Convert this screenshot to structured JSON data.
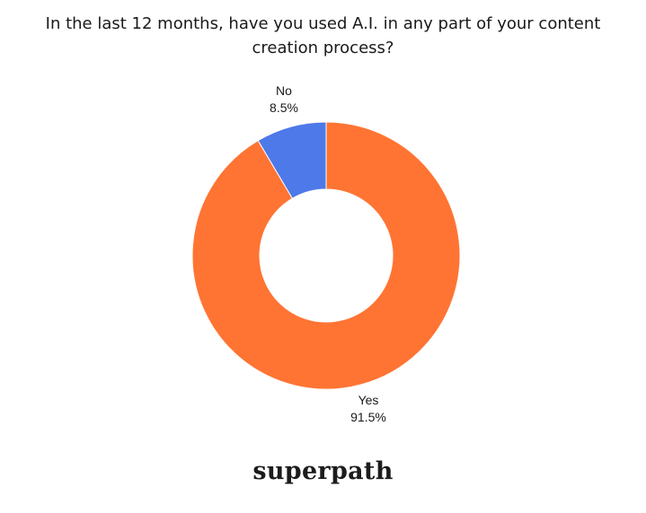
{
  "chart_data": {
    "type": "pie",
    "title": "In the last 12 months, have you used A.I. in any part of your content creation process?",
    "categories": [
      "No",
      "Yes"
    ],
    "values": [
      8.5,
      91.5
    ],
    "value_labels": [
      "8.5%",
      "91.5%"
    ],
    "colors": [
      "#4E79E8",
      "#FF7433"
    ],
    "donut": true,
    "legend": "none"
  },
  "brand": {
    "logo_text": "superpath"
  }
}
